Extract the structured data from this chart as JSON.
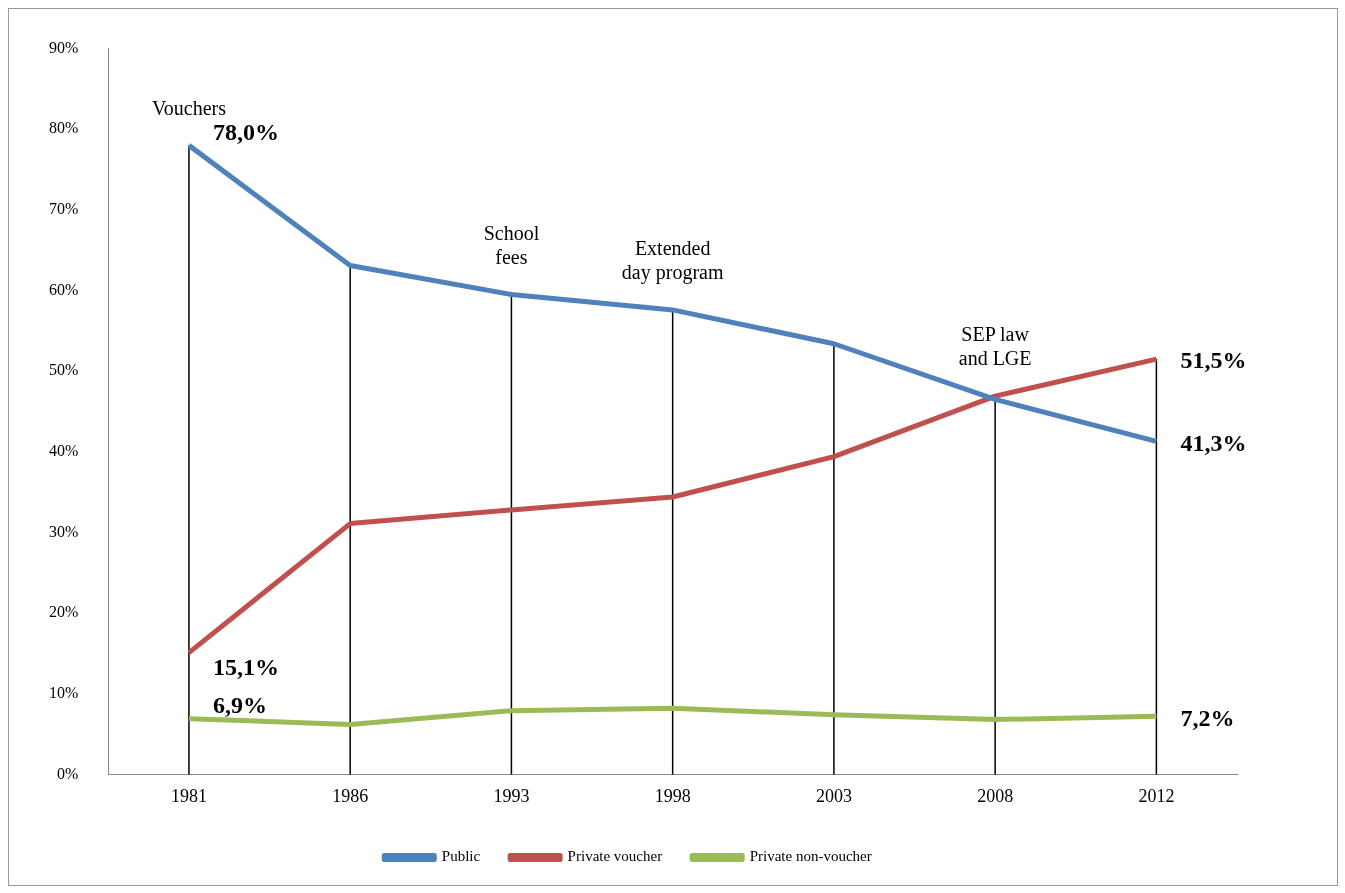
{
  "chart_data": {
    "type": "line",
    "categories": [
      "1981",
      "1986",
      "1993",
      "1998",
      "2003",
      "2008",
      "2012"
    ],
    "series": [
      {
        "name": "Public",
        "color": "#4f81bd",
        "values": [
          78.0,
          63.1,
          59.5,
          57.6,
          53.4,
          46.5,
          41.3
        ],
        "value_labels": [
          "78,0%",
          null,
          null,
          null,
          null,
          null,
          "41,3%"
        ]
      },
      {
        "name": "Private voucher",
        "color": "#c0504d",
        "values": [
          15.1,
          31.1,
          32.8,
          34.4,
          39.4,
          46.9,
          51.5
        ],
        "value_labels": [
          "15,1%",
          null,
          null,
          null,
          null,
          null,
          "51,5%"
        ]
      },
      {
        "name": "Private non-voucher",
        "color": "#9bbb59",
        "values": [
          6.9,
          6.2,
          7.9,
          8.2,
          7.4,
          6.8,
          7.2
        ],
        "value_labels": [
          "6,9%",
          null,
          null,
          null,
          null,
          null,
          "7,2%"
        ]
      }
    ],
    "ylim": [
      0,
      90
    ],
    "yticks": [
      {
        "value": 0,
        "label": "0%"
      },
      {
        "value": 10,
        "label": "10%"
      },
      {
        "value": 20,
        "label": "20%"
      },
      {
        "value": 30,
        "label": "30%"
      },
      {
        "value": 40,
        "label": "40%"
      },
      {
        "value": 50,
        "label": "50%"
      },
      {
        "value": 60,
        "label": "60%"
      },
      {
        "value": 70,
        "label": "70%"
      },
      {
        "value": 80,
        "label": "80%"
      },
      {
        "value": 90,
        "label": "90%"
      }
    ],
    "ref_lines": [
      {
        "axis": "x",
        "value": "1981",
        "color": "#000000",
        "label": "Vouchers"
      },
      {
        "axis": "x",
        "value": "1986",
        "color": "#000000"
      },
      {
        "axis": "x",
        "value": "1993",
        "color": "#000000",
        "label": "School\nfees"
      },
      {
        "axis": "x",
        "value": "1998",
        "color": "#000000",
        "label": "Extended\nday program"
      },
      {
        "axis": "x",
        "value": "2003",
        "color": "#000000"
      },
      {
        "axis": "x",
        "value": "2008",
        "color": "#000000",
        "label": "SEP law\nand LGE"
      },
      {
        "axis": "x",
        "value": "2012",
        "color": "#000000"
      }
    ],
    "grid": false,
    "legend": "bottom",
    "marker": "none",
    "line_style": "solid"
  }
}
